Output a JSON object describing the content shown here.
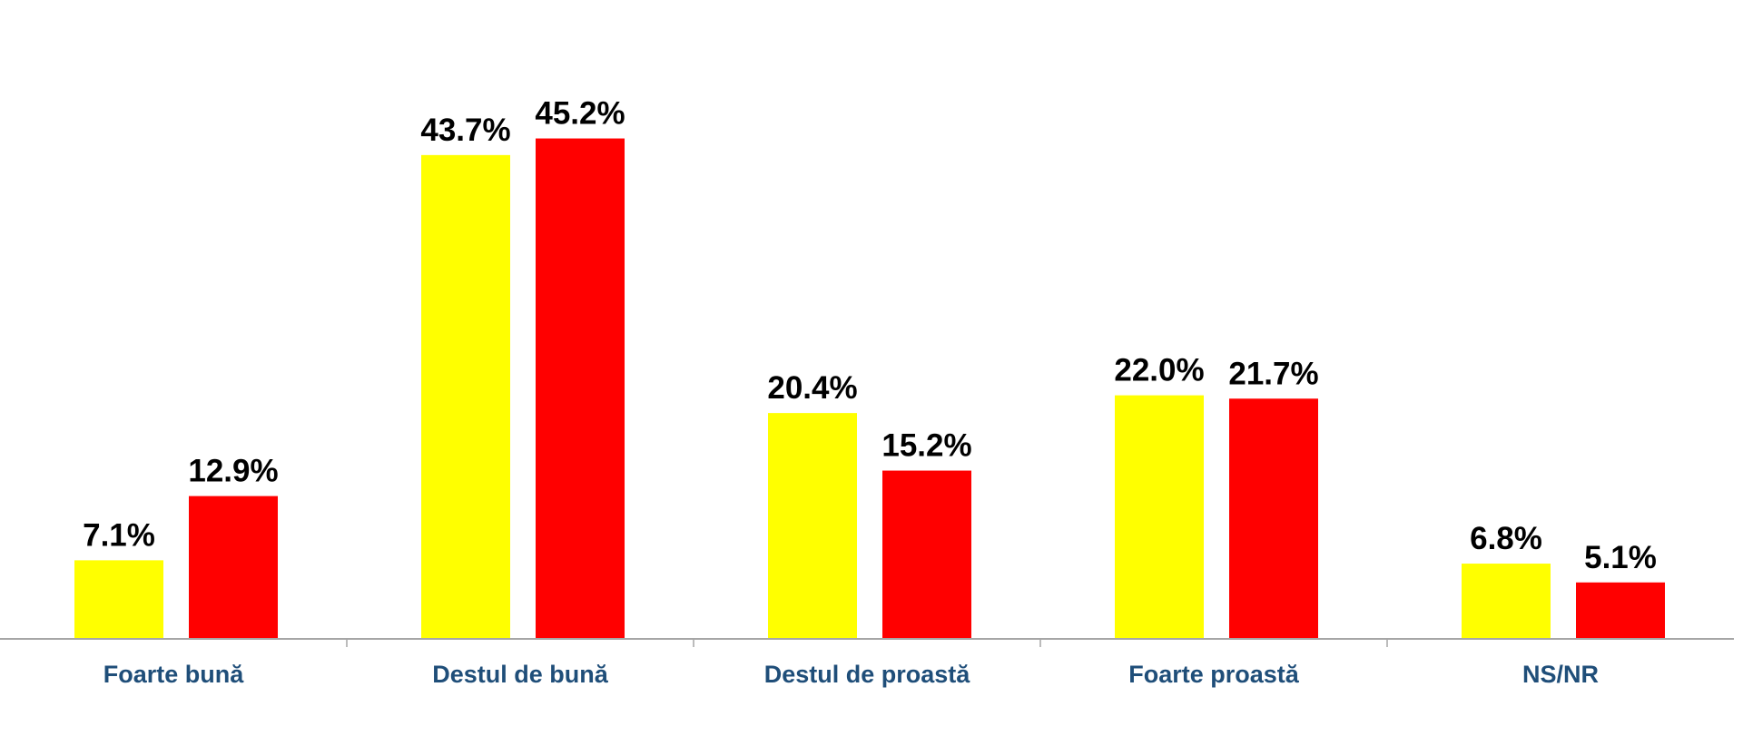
{
  "chart_data": {
    "type": "bar",
    "categories": [
      "Foarte bună",
      "Destul de bună",
      "Destul de proastă",
      "Foarte proastă",
      "NS/NR"
    ],
    "series": [
      {
        "values": [
          7.1,
          43.7,
          20.4,
          22.0,
          6.8
        ],
        "labels": [
          "7.1%",
          "43.7%",
          "20.4%",
          "22.0%",
          "6.8%"
        ],
        "color": "#FFFF00"
      },
      {
        "values": [
          12.9,
          45.2,
          15.2,
          21.7,
          5.1
        ],
        "labels": [
          "12.9%",
          "45.2%",
          "15.2%",
          "21.7%",
          "5.1%"
        ],
        "color": "#FF0000"
      }
    ],
    "ylim": [
      0,
      50
    ],
    "grid": false,
    "axis_color": "#A6A6A6",
    "category_label_color": "#1F4E79",
    "value_label_color": "#000000"
  }
}
